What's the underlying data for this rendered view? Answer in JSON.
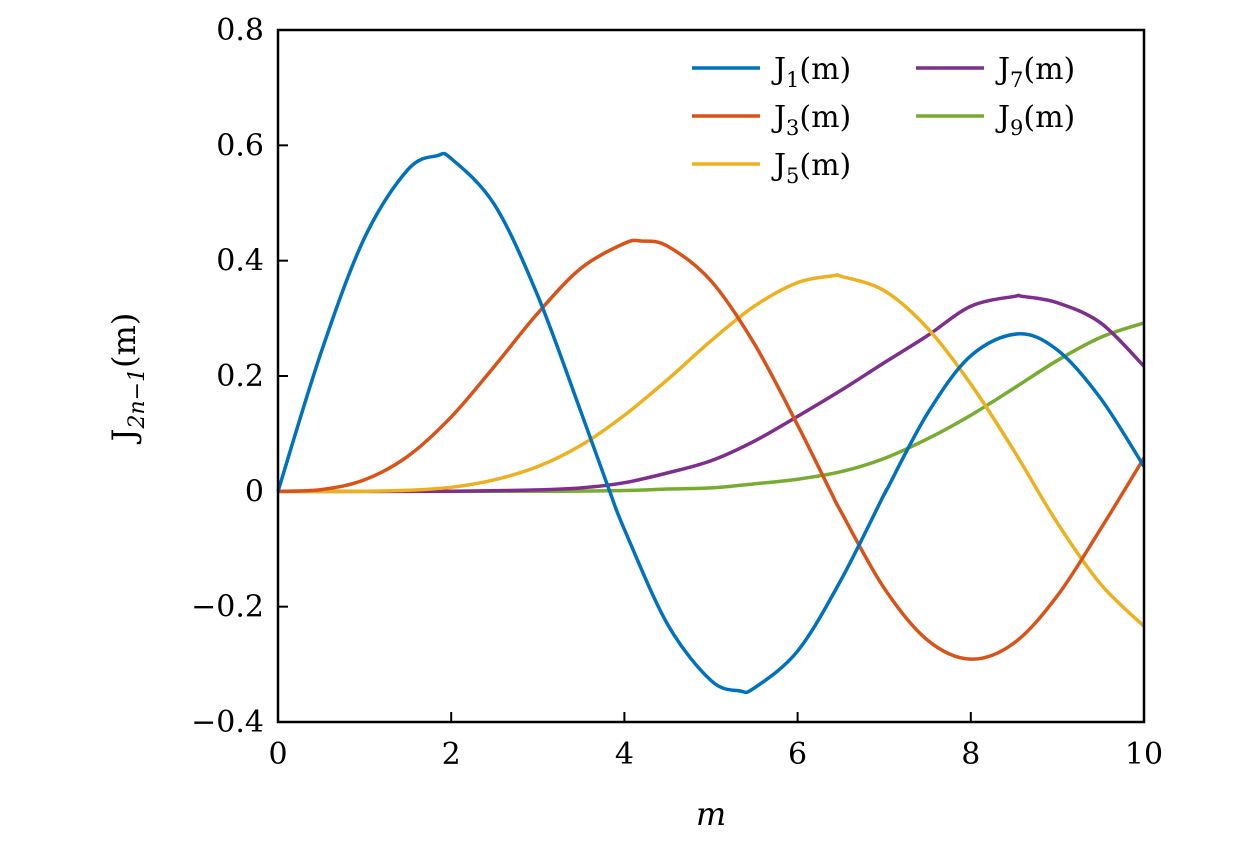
{
  "chart_data": {
    "type": "line",
    "title": "",
    "xlabel": "m",
    "ylabel": {
      "base": "J",
      "sub": "2n−1",
      "arg": "(m)"
    },
    "xlim": [
      0,
      10
    ],
    "ylim": [
      -0.4,
      0.8
    ],
    "xticks": [
      0,
      2,
      4,
      6,
      8,
      10
    ],
    "xtick_labels": [
      "0",
      "2",
      "4",
      "6",
      "8",
      "10"
    ],
    "yticks": [
      -0.4,
      -0.2,
      0,
      0.2,
      0.4,
      0.6,
      0.8
    ],
    "ytick_labels": [
      "−0.4",
      "−0.2",
      "0",
      "0.2",
      "0.4",
      "0.6",
      "0.8"
    ],
    "grid": false,
    "legend_position": "top-right",
    "series": [
      {
        "name": "J1(m)",
        "base": "J",
        "sub": "1",
        "arg": "(m)",
        "color": "#0072BD",
        "x": [
          0,
          0.5,
          1,
          1.5,
          1.84,
          2,
          2.5,
          3,
          3.5,
          3.83,
          4,
          4.5,
          5,
          5.33,
          5.5,
          6,
          6.5,
          7,
          7.02,
          7.5,
          8,
          8.54,
          9,
          9.5,
          10
        ],
        "y": [
          0,
          0.242,
          0.44,
          0.558,
          0.582,
          0.577,
          0.497,
          0.339,
          0.137,
          0,
          -0.066,
          -0.231,
          -0.328,
          -0.346,
          -0.341,
          -0.277,
          -0.154,
          -0.005,
          0,
          0.135,
          0.235,
          0.273,
          0.245,
          0.161,
          0.043
        ]
      },
      {
        "name": "J3(m)",
        "base": "J",
        "sub": "3",
        "arg": "(m)",
        "color": "#D95319",
        "x": [
          0,
          0.5,
          1,
          1.5,
          2,
          2.5,
          3,
          3.5,
          4,
          4.2,
          4.5,
          5,
          5.5,
          6,
          6.38,
          6.5,
          7,
          7.5,
          8,
          8.5,
          9,
          9.5,
          10
        ],
        "y": [
          0,
          0.003,
          0.02,
          0.061,
          0.129,
          0.217,
          0.309,
          0.387,
          0.43,
          0.434,
          0.425,
          0.365,
          0.256,
          0.115,
          0,
          -0.035,
          -0.168,
          -0.258,
          -0.291,
          -0.263,
          -0.181,
          -0.065,
          0.058
        ]
      },
      {
        "name": "J5(m)",
        "base": "J",
        "sub": "5",
        "arg": "(m)",
        "color": "#EDB120",
        "x": [
          0,
          1,
          1.5,
          2,
          2.5,
          3,
          3.5,
          4,
          4.5,
          5,
          5.5,
          6,
          6.42,
          6.5,
          7,
          7.5,
          8,
          8.5,
          9,
          9.5,
          10
        ],
        "y": [
          0,
          0.0002,
          0.0018,
          0.007,
          0.02,
          0.043,
          0.08,
          0.132,
          0.194,
          0.261,
          0.321,
          0.362,
          0.374,
          0.373,
          0.348,
          0.283,
          0.186,
          0.07,
          -0.055,
          -0.161,
          -0.234
        ]
      },
      {
        "name": "J7(m)",
        "base": "J",
        "sub": "7",
        "arg": "(m)",
        "color": "#7E2F8E",
        "x": [
          0,
          2,
          3,
          3.5,
          4,
          4.5,
          5,
          5.5,
          6,
          6.5,
          7,
          7.5,
          8,
          8.5,
          8.6,
          9,
          9.5,
          10
        ],
        "y": [
          0,
          0.0002,
          0.0025,
          0.006,
          0.015,
          0.032,
          0.053,
          0.087,
          0.13,
          0.175,
          0.223,
          0.27,
          0.321,
          0.338,
          0.338,
          0.327,
          0.292,
          0.217
        ]
      },
      {
        "name": "J9(m)",
        "base": "J",
        "sub": "9",
        "arg": "(m)",
        "color": "#77AC30",
        "x": [
          0,
          3,
          4,
          4.5,
          5,
          5.5,
          6,
          6.5,
          7,
          7.5,
          8,
          8.5,
          9,
          9.5,
          10
        ],
        "y": [
          0,
          0.0001,
          0.0015,
          0.004,
          0.006,
          0.013,
          0.021,
          0.034,
          0.057,
          0.091,
          0.132,
          0.179,
          0.227,
          0.267,
          0.292
        ]
      }
    ]
  }
}
